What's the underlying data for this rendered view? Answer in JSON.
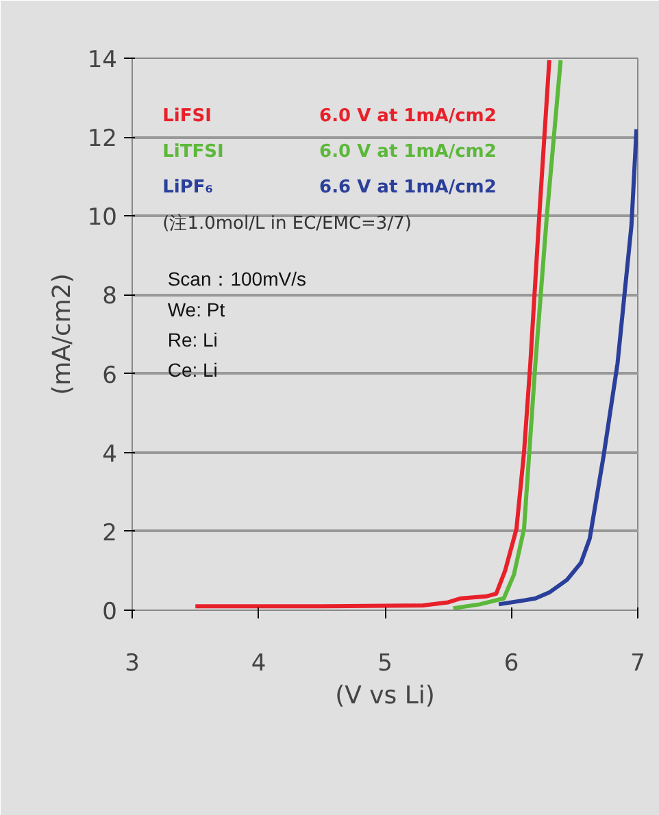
{
  "chart_data": {
    "type": "line",
    "xlabel": "(V vs Li)",
    "ylabel": "(mA/cm2)",
    "xlim": [
      3,
      7
    ],
    "xticks": [
      3,
      4,
      5,
      6,
      7
    ],
    "ylim": [
      0,
      14
    ],
    "yticks": [
      0,
      2,
      4,
      6,
      8,
      10,
      12,
      14
    ],
    "grid": "y",
    "line_style": "solid",
    "series": [
      {
        "name": "LiFSI",
        "color": "#e8202a",
        "x": [
          3.5,
          4.5,
          5.3,
          5.5,
          5.6,
          5.8,
          5.88,
          5.95,
          6.04,
          6.1,
          6.15,
          6.22,
          6.3
        ],
        "values": [
          0.1,
          0.1,
          0.12,
          0.2,
          0.3,
          0.35,
          0.42,
          1.0,
          2.06,
          4.0,
          6.26,
          9.97,
          13.95
        ]
      },
      {
        "name": "LiTFSI",
        "color": "#5cb83a",
        "x": [
          5.54,
          5.75,
          5.94,
          6.02,
          6.1,
          6.19,
          6.28,
          6.39
        ],
        "values": [
          0.05,
          0.15,
          0.3,
          0.9,
          2.06,
          6.26,
          9.97,
          13.95
        ]
      },
      {
        "name": "LiPF₆",
        "color": "#2a3f9a",
        "x": [
          5.9,
          6.1,
          6.19,
          6.3,
          6.44,
          6.55,
          6.62,
          6.73,
          6.84,
          6.95,
          6.99
        ],
        "values": [
          0.15,
          0.25,
          0.3,
          0.45,
          0.77,
          1.2,
          1.82,
          3.92,
          6.26,
          9.76,
          12.2
        ]
      }
    ],
    "annotations": [
      "6.0 V at 1mA/cm2",
      "6.0 V at 1mA/cm2",
      "6.6 V at 1mA/cm2",
      "(注1.0mol/L in EC/EMC=3/7)",
      "Scan：100mV/s",
      "We:    Pt",
      "Re:    Li",
      "Ce:    Li"
    ]
  }
}
